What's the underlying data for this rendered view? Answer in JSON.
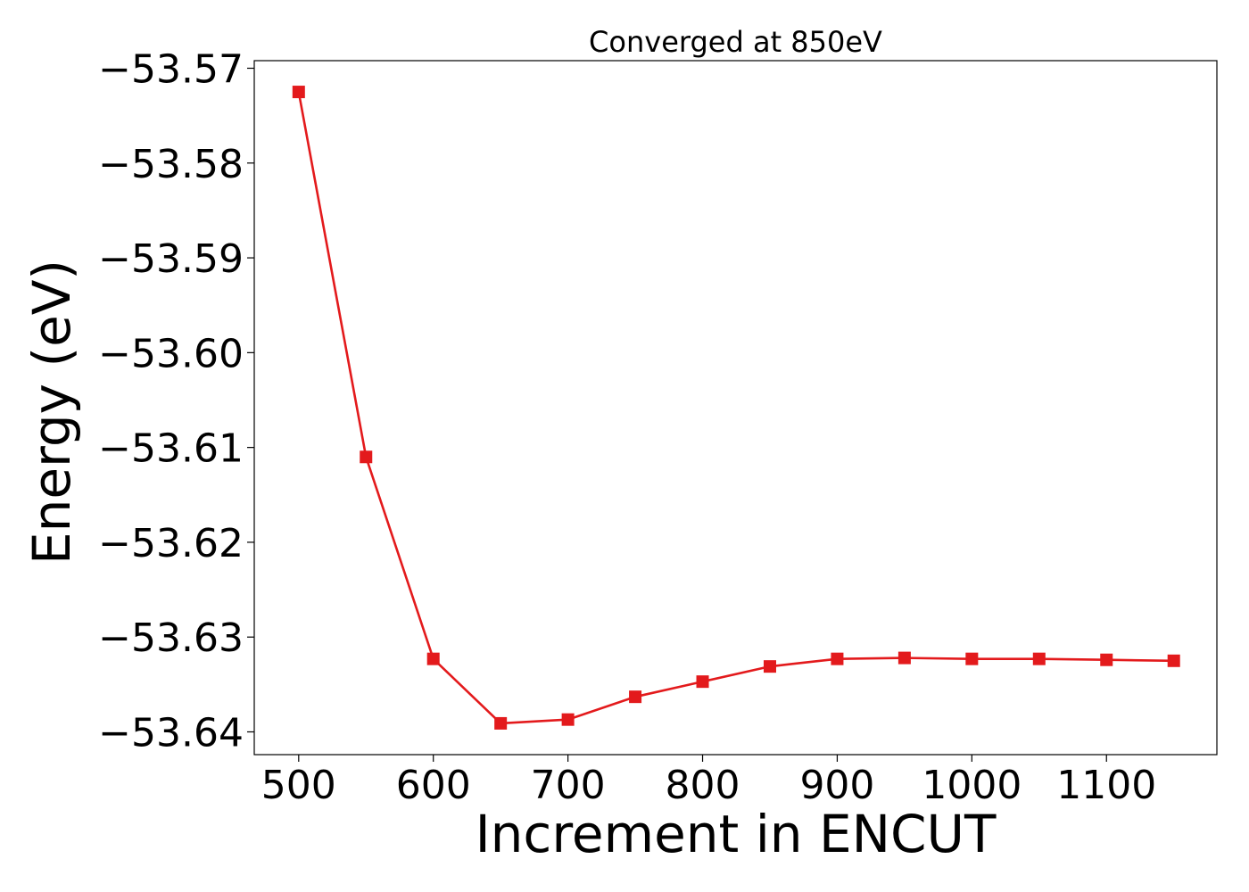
{
  "chart_data": {
    "type": "line",
    "title": "Converged at 850eV",
    "xlabel": "Increment in ENCUT",
    "ylabel": "Energy (eV)",
    "x": [
      500,
      550,
      600,
      650,
      700,
      750,
      800,
      850,
      900,
      950,
      1000,
      1050,
      1100,
      1150
    ],
    "series": [
      {
        "values": [
          -53.5725,
          -53.611,
          -53.6323,
          -53.6391,
          -53.6387,
          -53.6363,
          -53.6347,
          -53.6331,
          -53.6323,
          -53.6322,
          -53.6323,
          -53.6323,
          -53.6324,
          -53.6325
        ],
        "color": "#e31a1c",
        "marker": "square"
      }
    ],
    "xlim": [
      467,
      1182
    ],
    "ylim": [
      -53.6424,
      -53.5692
    ],
    "xticks": [
      500,
      600,
      700,
      800,
      900,
      1000,
      1100
    ],
    "xtick_labels": [
      "500",
      "600",
      "700",
      "800",
      "900",
      "1000",
      "1100"
    ],
    "yticks": [
      -53.57,
      -53.58,
      -53.59,
      -53.6,
      -53.61,
      -53.62,
      -53.63,
      -53.64
    ],
    "ytick_labels": [
      "−53.57",
      "−53.58",
      "−53.59",
      "−53.60",
      "−53.61",
      "−53.62",
      "−53.63",
      "−53.64"
    ],
    "grid": false,
    "legend": "none"
  }
}
